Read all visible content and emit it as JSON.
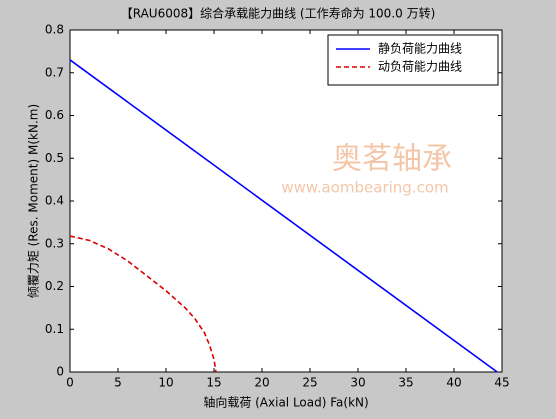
{
  "chart_data": {
    "type": "line",
    "title": "【RAU6008】综合承载能力曲线 (工作寿命为 100.0 万转)",
    "x_label": "轴向载荷 (Axial Load) Fa(kN)",
    "y_label": "倾覆力矩 (Res. Moment) M(kN.m)",
    "watermark": [
      "奥茗轴承",
      "www.aombearing.com"
    ],
    "xlim": [
      0,
      45
    ],
    "xticks": [
      0,
      5,
      10,
      15,
      20,
      25,
      30,
      35,
      40,
      45
    ],
    "ylim": [
      0,
      0.8
    ],
    "yticks": [
      0,
      0.1,
      0.2,
      0.3,
      0.4,
      0.5,
      0.6,
      0.7,
      0.8
    ],
    "legend": "upper right",
    "series": [
      {
        "name": "静负荷能力曲线",
        "color": "#0000ff",
        "dash": false,
        "x": [
          0,
          44.5
        ],
        "values": [
          0.73,
          0
        ]
      },
      {
        "name": "动负荷能力曲线",
        "color": "#dd0000",
        "dash": true,
        "x": [
          0,
          2,
          4,
          6,
          8,
          10,
          12,
          13,
          14,
          14.5,
          15,
          15.2
        ],
        "values": [
          0.318,
          0.308,
          0.288,
          0.26,
          0.225,
          0.19,
          0.15,
          0.125,
          0.092,
          0.065,
          0.03,
          0
        ]
      }
    ]
  }
}
